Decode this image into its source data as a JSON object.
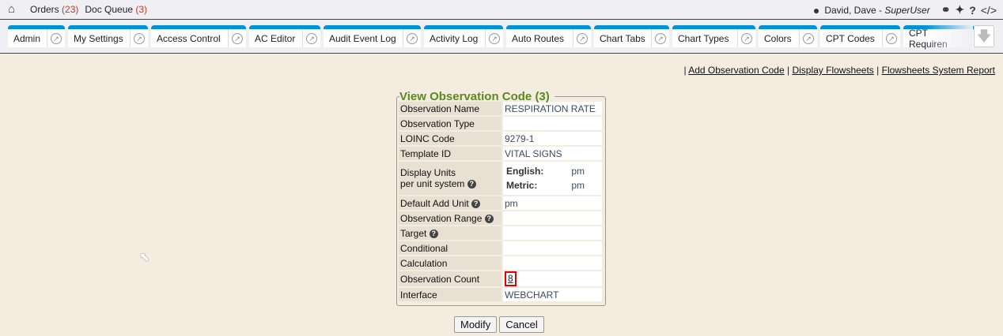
{
  "topbar": {
    "orders_label": "Orders",
    "orders_count": "(23)",
    "docqueue_label": "Doc Queue",
    "docqueue_count": "(3)",
    "user_name": "David, Dave - ",
    "user_role": "SuperUser"
  },
  "tabs": [
    "Admin",
    "My Settings",
    "Access Control",
    "AC Editor",
    "Audit Event Log",
    "Activity Log",
    "Auto Routes",
    "Chart Tabs",
    "Chart Types",
    "Colors",
    "CPT Codes",
    "CPT Requiren"
  ],
  "links": {
    "add": "Add Observation Code",
    "display": "Display Flowsheets",
    "report": "Flowsheets System Report"
  },
  "form": {
    "title": "View Observation Code (3)",
    "rows": [
      {
        "label": "Observation Name",
        "value": "RESPIRATION RATE"
      },
      {
        "label": "Observation Type",
        "value": ""
      },
      {
        "label": "LOINC Code",
        "value": "9279-1"
      },
      {
        "label": "Template ID",
        "value": "VITAL SIGNS"
      },
      {
        "label": "Display Units",
        "label2": "per unit system",
        "english_label": "English:",
        "english": "pm",
        "metric_label": "Metric:",
        "metric": "pm"
      },
      {
        "label": "Default Add Unit",
        "value": "pm"
      },
      {
        "label": "Observation Range",
        "value": ""
      },
      {
        "label": "Target",
        "value": ""
      },
      {
        "label": "Conditional",
        "value": ""
      },
      {
        "label": "Calculation",
        "value": ""
      },
      {
        "label": "Observation Count",
        "value": "8"
      },
      {
        "label": "Interface",
        "value": "WEBCHART"
      }
    ],
    "modify": "Modify",
    "cancel": "Cancel"
  },
  "colors": {
    "tab_accent": "#0092d6",
    "legend": "#5a8a1f",
    "highlight": "#e00000"
  }
}
